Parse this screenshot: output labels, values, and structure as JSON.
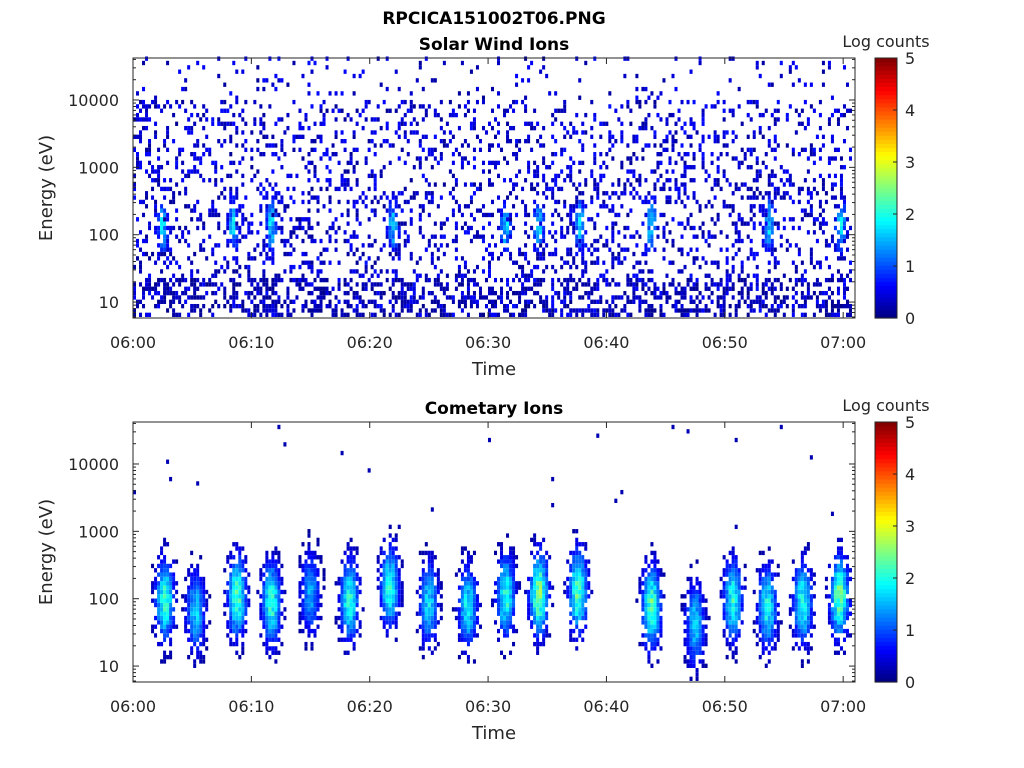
{
  "figure_title": "RPCICA151002T06.PNG",
  "chart_data": [
    {
      "type": "heatmap",
      "title": "Solar Wind Ions",
      "xlabel": "Time",
      "ylabel": "Energy (eV)",
      "x_range": [
        "06:00",
        "07:01"
      ],
      "x_ticks": [
        "06:00",
        "06:10",
        "06:20",
        "06:30",
        "06:40",
        "06:50",
        "07:00"
      ],
      "y_scale": "log",
      "y_range": [
        5.8,
        42000
      ],
      "y_ticks": [
        {
          "value": 10,
          "label": "10"
        },
        {
          "value": 100,
          "label": "100"
        },
        {
          "value": 1000,
          "label": "1000"
        },
        {
          "value": 10000,
          "label": "10000"
        }
      ],
      "colorbar": {
        "label": "Log counts",
        "range": [
          0,
          5
        ],
        "ticks": [
          "0",
          "1",
          "2",
          "3",
          "4",
          "5"
        ],
        "colormap": "jet"
      },
      "grid": false,
      "pattern": {
        "description": "sparse low-count noise across all energies, denser below 1000 eV",
        "burst_minutes": [
          2.5,
          8.5,
          11.7,
          22,
          31.5,
          34.3,
          37.8,
          43.8,
          53.7,
          59.8
        ],
        "burst_energy_range_eV": [
          40,
          400
        ],
        "typical_max_log_counts": 1.9
      }
    },
    {
      "type": "heatmap",
      "title": "Cometary Ions",
      "xlabel": "Time",
      "ylabel": "Energy (eV)",
      "x_range": [
        "06:00",
        "07:01"
      ],
      "x_ticks": [
        "06:00",
        "06:10",
        "06:20",
        "06:30",
        "06:40",
        "06:50",
        "07:00"
      ],
      "y_scale": "log",
      "y_range": [
        5.8,
        42000
      ],
      "y_ticks": [
        {
          "value": 10,
          "label": "10"
        },
        {
          "value": 100,
          "label": "100"
        },
        {
          "value": 1000,
          "label": "1000"
        },
        {
          "value": 10000,
          "label": "10000"
        }
      ],
      "colorbar": {
        "label": "Log counts",
        "range": [
          0,
          5
        ],
        "ticks": [
          "0",
          "1",
          "2",
          "3",
          "4",
          "5"
        ],
        "colormap": "jet"
      },
      "grid": false,
      "bursts": [
        {
          "t_min": 2.7,
          "peak_eV": 90,
          "max_log_counts": 2.3
        },
        {
          "t_min": 5.3,
          "peak_eV": 60,
          "max_log_counts": 1.8
        },
        {
          "t_min": 8.8,
          "peak_eV": 100,
          "max_log_counts": 2.4
        },
        {
          "t_min": 11.7,
          "peak_eV": 80,
          "max_log_counts": 2.3
        },
        {
          "t_min": 15.0,
          "peak_eV": 110,
          "max_log_counts": 1.6
        },
        {
          "t_min": 18.3,
          "peak_eV": 90,
          "max_log_counts": 2.2
        },
        {
          "t_min": 21.7,
          "peak_eV": 140,
          "max_log_counts": 2.2
        },
        {
          "t_min": 25.0,
          "peak_eV": 80,
          "max_log_counts": 1.9
        },
        {
          "t_min": 28.3,
          "peak_eV": 70,
          "max_log_counts": 2.0
        },
        {
          "t_min": 31.5,
          "peak_eV": 100,
          "max_log_counts": 2.2
        },
        {
          "t_min": 34.3,
          "peak_eV": 110,
          "max_log_counts": 2.7
        },
        {
          "t_min": 37.6,
          "peak_eV": 120,
          "max_log_counts": 2.5
        },
        {
          "t_min": 43.8,
          "peak_eV": 70,
          "max_log_counts": 2.5
        },
        {
          "t_min": 47.5,
          "peak_eV": 40,
          "max_log_counts": 1.8
        },
        {
          "t_min": 50.7,
          "peak_eV": 90,
          "max_log_counts": 2.2
        },
        {
          "t_min": 53.6,
          "peak_eV": 70,
          "max_log_counts": 2.1
        },
        {
          "t_min": 56.6,
          "peak_eV": 80,
          "max_log_counts": 2.2
        },
        {
          "t_min": 59.7,
          "peak_eV": 100,
          "max_log_counts": 2.6
        }
      ]
    }
  ]
}
